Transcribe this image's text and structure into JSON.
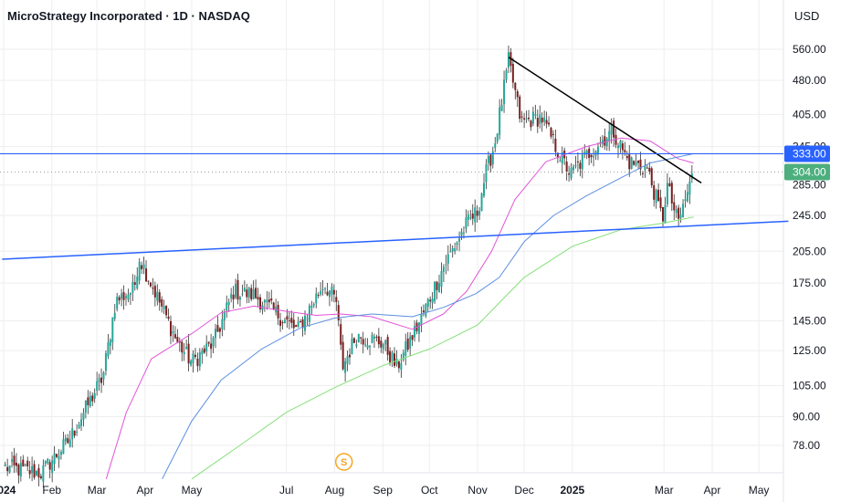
{
  "header": {
    "title": "MicroStrategy Incorporated · 1D · NASDAQ",
    "currency": "USD"
  },
  "colors": {
    "background": "#ffffff",
    "grid": "#eeeeee",
    "up_candle": "#26a69a",
    "down_candle": "#7a1f1f",
    "ma_pink": "#e254d8",
    "ma_blue": "#5b8fe0",
    "ma_green": "#86e07a",
    "trend_black": "#000000",
    "hline_blue": "#2962ff",
    "current_price_badge": "#4caf7d",
    "level_badge": "#2962ff",
    "event_marker": "#f5a623"
  },
  "chart_data": {
    "type": "candlestick",
    "symbol": "MicroStrategy Incorporated",
    "interval": "1D",
    "exchange": "NASDAQ",
    "y_scale": "log",
    "ylim": [
      66,
      600
    ],
    "x_ticks": [
      "2024",
      "Feb",
      "Mar",
      "Apr",
      "May",
      "Jul",
      "Aug",
      "Sep",
      "Oct",
      "Nov",
      "Dec",
      "2025",
      "Mar",
      "Apr",
      "May"
    ],
    "y_ticks": [
      "560.00",
      "480.00",
      "405.00",
      "345.00",
      "285.00",
      "245.00",
      "205.00",
      "175.00",
      "145.00",
      "125.00",
      "105.00",
      "90.00",
      "78.00"
    ],
    "price_badges": [
      {
        "label": "333.00",
        "value": 333,
        "kind": "horizontal-level"
      },
      {
        "label": "304.00",
        "value": 304,
        "kind": "current-price"
      }
    ],
    "price_anchors": [
      {
        "date": "2024-01-02",
        "value": 70
      },
      {
        "date": "2024-01-25",
        "value": 68
      },
      {
        "date": "2024-02-12",
        "value": 80
      },
      {
        "date": "2024-03-05",
        "value": 110
      },
      {
        "date": "2024-03-13",
        "value": 160
      },
      {
        "date": "2024-03-25",
        "value": 170
      },
      {
        "date": "2024-03-28",
        "value": 200
      },
      {
        "date": "2024-04-10",
        "value": 160
      },
      {
        "date": "2024-04-22",
        "value": 130
      },
      {
        "date": "2024-05-01",
        "value": 118
      },
      {
        "date": "2024-05-15",
        "value": 130
      },
      {
        "date": "2024-05-28",
        "value": 168
      },
      {
        "date": "2024-06-10",
        "value": 165
      },
      {
        "date": "2024-06-25",
        "value": 150
      },
      {
        "date": "2024-07-08",
        "value": 138
      },
      {
        "date": "2024-07-25",
        "value": 175
      },
      {
        "date": "2024-08-02",
        "value": 160
      },
      {
        "date": "2024-08-06",
        "value": 115
      },
      {
        "date": "2024-08-15",
        "value": 135
      },
      {
        "date": "2024-09-01",
        "value": 130
      },
      {
        "date": "2024-09-10",
        "value": 115
      },
      {
        "date": "2024-09-25",
        "value": 145
      },
      {
        "date": "2024-10-10",
        "value": 190
      },
      {
        "date": "2024-10-25",
        "value": 235
      },
      {
        "date": "2024-11-01",
        "value": 250
      },
      {
        "date": "2024-11-06",
        "value": 300
      },
      {
        "date": "2024-11-12",
        "value": 350
      },
      {
        "date": "2024-11-21",
        "value": 530
      },
      {
        "date": "2024-11-29",
        "value": 390
      },
      {
        "date": "2024-12-12",
        "value": 400
      },
      {
        "date": "2024-12-24",
        "value": 330
      },
      {
        "date": "2024-12-31",
        "value": 300
      },
      {
        "date": "2025-01-10",
        "value": 330
      },
      {
        "date": "2025-01-27",
        "value": 375
      },
      {
        "date": "2025-02-06",
        "value": 320
      },
      {
        "date": "2025-02-18",
        "value": 310
      },
      {
        "date": "2025-02-28",
        "value": 240
      },
      {
        "date": "2025-03-03",
        "value": 285
      },
      {
        "date": "2025-03-10",
        "value": 235
      },
      {
        "date": "2025-03-20",
        "value": 304
      }
    ],
    "overlays": [
      {
        "kind": "moving-average",
        "color_key": "ma_pink",
        "points": [
          [
            "2024-03-07",
            66
          ],
          [
            "2024-03-20",
            92
          ],
          [
            "2024-04-05",
            120
          ],
          [
            "2024-05-01",
            136
          ],
          [
            "2024-05-20",
            151
          ],
          [
            "2024-06-10",
            156
          ],
          [
            "2024-07-01",
            152
          ],
          [
            "2024-07-20",
            149
          ],
          [
            "2024-08-05",
            150
          ],
          [
            "2024-08-25",
            148
          ],
          [
            "2024-09-20",
            139
          ],
          [
            "2024-10-10",
            150
          ],
          [
            "2024-10-25",
            168
          ],
          [
            "2024-11-10",
            205
          ],
          [
            "2024-11-25",
            265
          ],
          [
            "2024-12-15",
            320
          ],
          [
            "2025-01-10",
            345
          ],
          [
            "2025-02-01",
            360
          ],
          [
            "2025-02-20",
            355
          ],
          [
            "2025-03-10",
            325
          ],
          [
            "2025-03-20",
            318
          ]
        ]
      },
      {
        "kind": "moving-average",
        "color_key": "ma_blue",
        "points": [
          [
            "2024-04-12",
            66
          ],
          [
            "2024-05-01",
            88
          ],
          [
            "2024-05-20",
            108
          ],
          [
            "2024-06-15",
            126
          ],
          [
            "2024-07-10",
            140
          ],
          [
            "2024-08-01",
            147
          ],
          [
            "2024-08-25",
            150
          ],
          [
            "2024-09-20",
            148
          ],
          [
            "2024-10-10",
            155
          ],
          [
            "2024-10-31",
            166
          ],
          [
            "2024-11-15",
            180
          ],
          [
            "2024-12-01",
            215
          ],
          [
            "2024-12-20",
            245
          ],
          [
            "2025-01-10",
            270
          ],
          [
            "2025-02-01",
            295
          ],
          [
            "2025-02-20",
            318
          ],
          [
            "2025-03-20",
            333
          ]
        ]
      },
      {
        "kind": "moving-average",
        "color_key": "ma_green",
        "points": [
          [
            "2024-05-01",
            66
          ],
          [
            "2024-06-01",
            78
          ],
          [
            "2024-07-01",
            92
          ],
          [
            "2024-08-01",
            104
          ],
          [
            "2024-09-01",
            116
          ],
          [
            "2024-10-01",
            126
          ],
          [
            "2024-11-01",
            142
          ],
          [
            "2024-12-01",
            180
          ],
          [
            "2025-01-01",
            210
          ],
          [
            "2025-02-01",
            228
          ],
          [
            "2025-03-01",
            236
          ],
          [
            "2025-03-20",
            243
          ]
        ]
      },
      {
        "kind": "trendline",
        "color_key": "trend_black",
        "points": [
          [
            "2024-11-21",
            538
          ],
          [
            "2025-03-25",
            288
          ]
        ]
      },
      {
        "kind": "trendline",
        "color_key": "hline_blue",
        "points": [
          [
            "2023-12-31",
            197
          ],
          [
            "2025-05-20",
            238
          ]
        ]
      },
      {
        "kind": "horizontal-line",
        "color_key": "hline_blue",
        "value": 333
      },
      {
        "kind": "horizontal-dotted",
        "color_key": "grid",
        "value": 304
      }
    ],
    "events": [
      {
        "date": "2024-08-07",
        "label": "S",
        "kind": "split-marker"
      }
    ]
  }
}
